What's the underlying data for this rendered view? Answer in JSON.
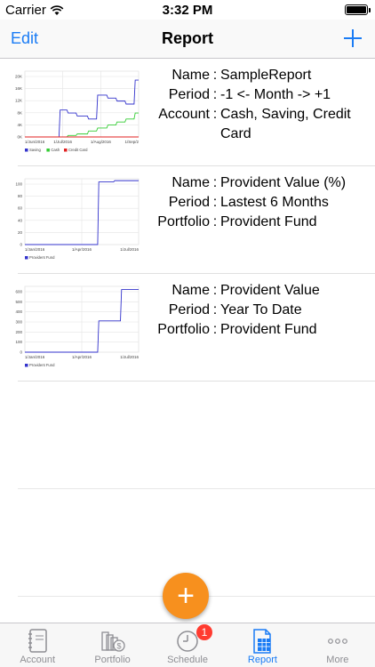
{
  "status": {
    "carrier": "Carrier",
    "time": "3:32 PM"
  },
  "nav": {
    "edit": "Edit",
    "title": "Report"
  },
  "reports": [
    {
      "fields": [
        {
          "label": "Name",
          "value": "SampleReport"
        },
        {
          "label": "Period",
          "value": "-1 <- Month -> +1"
        },
        {
          "label": "Account",
          "value": "Cash, Saving, Credit Card"
        }
      ],
      "chart_data": {
        "type": "line",
        "ytick_labels": [
          "0K",
          "4K",
          "8K",
          "12K",
          "16K",
          "20K"
        ],
        "xtick_labels": [
          "1/Jun/2016",
          "1/Jul/2016",
          "1/Aug/2016",
          "1/Sep/2"
        ],
        "legend": [
          "Saving",
          "Cash",
          "Credit Card"
        ],
        "colors": [
          "#3333cc",
          "#33cc33",
          "#e02020"
        ],
        "ylim": [
          0,
          22
        ],
        "x": [
          0,
          0.3,
          0.31,
          0.37,
          0.38,
          0.45,
          0.46,
          0.55,
          0.56,
          0.63,
          0.64,
          0.72,
          0.73,
          0.8,
          0.81,
          0.88,
          0.89,
          0.96,
          0.97,
          1.0
        ],
        "series": [
          {
            "name": "Saving",
            "values": [
              0,
              0,
              9,
              9,
              8,
              8,
              7,
              7,
              6,
              6,
              14,
              14,
              13,
              13,
              12,
              12,
              11,
              11,
              19,
              19
            ]
          },
          {
            "name": "Cash",
            "values": [
              0,
              0,
              0,
              0,
              0.5,
              0.5,
              1,
              1,
              2,
              2,
              3,
              3,
              4,
              4,
              5,
              5,
              6,
              6,
              8,
              8
            ]
          },
          {
            "name": "Credit Card",
            "values": [
              0,
              0,
              0,
              0,
              0,
              0,
              0,
              0,
              0,
              0,
              0,
              0,
              0,
              0,
              0,
              0,
              0,
              0,
              0,
              0
            ]
          }
        ]
      }
    },
    {
      "fields": [
        {
          "label": "Name",
          "value": "Provident Value (%)"
        },
        {
          "label": "Period",
          "value": "Lastest 6 Months"
        },
        {
          "label": "Portfolio",
          "value": "Provident Fund"
        }
      ],
      "chart_data": {
        "type": "line",
        "ytick_labels": [
          "0",
          "20",
          "40",
          "60",
          "80",
          "100"
        ],
        "xtick_labels": [
          "1/Jan/2016",
          "1/Apr/2016",
          "1/Jul/2016"
        ],
        "legend": [
          "Provident Fund"
        ],
        "colors": [
          "#3333cc"
        ],
        "ylim": [
          0,
          105
        ],
        "x": [
          0,
          0.64,
          0.65,
          0.78,
          0.79,
          1.0
        ],
        "series": [
          {
            "name": "Provident Fund",
            "values": [
              0,
              0,
              100,
              100,
              102,
              102
            ]
          }
        ]
      }
    },
    {
      "fields": [
        {
          "label": "Name",
          "value": "Provident Value"
        },
        {
          "label": "Period",
          "value": "Year To Date"
        },
        {
          "label": "Portfolio",
          "value": "Provident Fund"
        }
      ],
      "chart_data": {
        "type": "line",
        "ytick_labels": [
          "0",
          "100",
          "200",
          "300",
          "400",
          "500",
          "600"
        ],
        "xtick_labels": [
          "1/Jan/2016",
          "1/Apr/2016",
          "1/Jul/2016"
        ],
        "legend": [
          "Provident Fund"
        ],
        "colors": [
          "#3333cc"
        ],
        "ylim": [
          0,
          620
        ],
        "x": [
          0,
          0.64,
          0.65,
          0.84,
          0.85,
          1.0
        ],
        "series": [
          {
            "name": "Provident Fund",
            "values": [
              0,
              0,
              295,
              295,
              590,
              590
            ]
          }
        ]
      }
    }
  ],
  "fab": {
    "label": "+"
  },
  "tabs": [
    {
      "label": "Account",
      "icon": "notebook-icon",
      "active": false,
      "badge": ""
    },
    {
      "label": "Portfolio",
      "icon": "money-stack-icon",
      "active": false,
      "badge": ""
    },
    {
      "label": "Schedule",
      "icon": "clock-icon",
      "active": false,
      "badge": "1"
    },
    {
      "label": "Report",
      "icon": "spreadsheet-icon",
      "active": true,
      "badge": ""
    },
    {
      "label": "More",
      "icon": "more-dots-icon",
      "active": false,
      "badge": ""
    }
  ]
}
